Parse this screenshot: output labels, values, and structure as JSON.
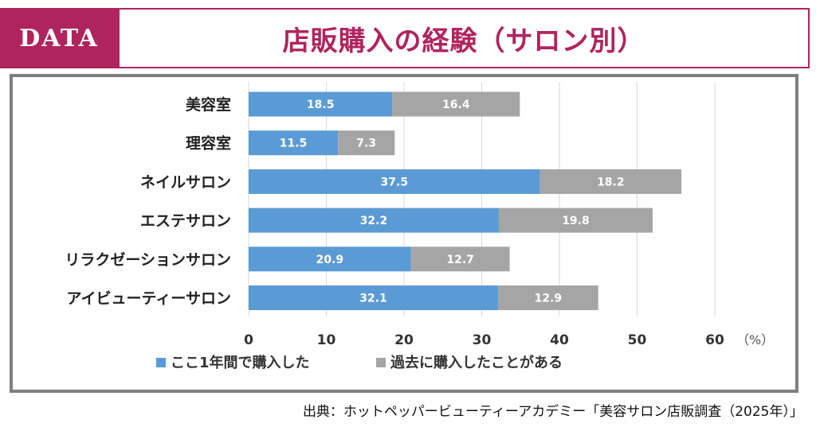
{
  "header": {
    "tag": "DATA",
    "title": "店販購入の経験（サロン別）"
  },
  "colors": {
    "brand": "#b0245e",
    "series1": "#5b9bd5",
    "series2": "#a5a5a5",
    "frame": "#7f7f7f"
  },
  "chart_data": {
    "type": "bar",
    "orientation": "horizontal",
    "stacked": true,
    "categories": [
      "美容室",
      "理容室",
      "ネイルサロン",
      "エステサロン",
      "リラクゼーションサロン",
      "アイビューティーサロン"
    ],
    "series": [
      {
        "name": "ここ1年間で購入した",
        "values": [
          18.5,
          11.5,
          37.5,
          32.2,
          20.9,
          32.1
        ]
      },
      {
        "name": "過去に購入したことがある",
        "values": [
          16.4,
          7.3,
          18.2,
          19.8,
          12.7,
          12.9
        ]
      }
    ],
    "xlim": [
      0,
      60
    ],
    "xticks": [
      0,
      10,
      20,
      30,
      40,
      50,
      60
    ],
    "unit_label": "（%）",
    "grid": true,
    "legend": "bottom"
  },
  "source": "出典：ホットペッパービューティーアカデミー「美容サロン店販調査（2025年）」"
}
